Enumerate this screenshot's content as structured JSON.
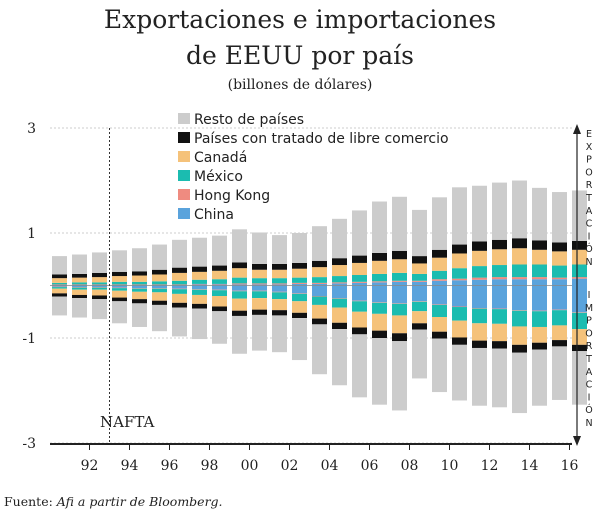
{
  "header": {
    "title_line1": "Exportaciones e importaciones",
    "title_line2": "de EEUU por país",
    "subtitle": "(billones de dólares)"
  },
  "footer": {
    "source_prefix": "Fuente: ",
    "source_text": "Afi a partir de Bloomberg."
  },
  "chart_data": {
    "type": "bar",
    "subtype": "stacked-diverging",
    "x": [
      1991,
      1992,
      1993,
      1994,
      1995,
      1996,
      1997,
      1998,
      1999,
      2000,
      2001,
      2002,
      2003,
      2004,
      2005,
      2006,
      2007,
      2008,
      2009,
      2010,
      2011,
      2012,
      2013,
      2014,
      2015,
      2016,
      2017
    ],
    "xtick_labels": [
      "92",
      "94",
      "96",
      "98",
      "00",
      "02",
      "04",
      "06",
      "08",
      "10",
      "12",
      "14",
      "16"
    ],
    "ytick_labels": [
      "3",
      "1",
      "-1",
      "-3"
    ],
    "ylim": [
      -3,
      3
    ],
    "grid": true,
    "legend_position": "top-right",
    "axis_side_labels": {
      "top": "EXPORTACIÓN",
      "bottom": "IMPORTACIÓN"
    },
    "annotation": {
      "text": "NAFTA",
      "x": 1993.5
    },
    "series": [
      {
        "name": "Resto de países",
        "color": "#cccccc",
        "exports": [
          0.35,
          0.37,
          0.39,
          0.41,
          0.44,
          0.48,
          0.53,
          0.55,
          0.57,
          0.63,
          0.6,
          0.55,
          0.57,
          0.66,
          0.75,
          0.86,
          0.98,
          1.03,
          0.88,
          1.0,
          1.09,
          1.06,
          1.09,
          1.1,
          1.0,
          0.96,
          0.96
        ],
        "imports": [
          -0.36,
          -0.37,
          -0.38,
          -0.42,
          -0.45,
          -0.5,
          -0.55,
          -0.58,
          -0.62,
          -0.72,
          -0.68,
          -0.7,
          -0.8,
          -0.95,
          -1.07,
          -1.2,
          -1.27,
          -1.32,
          -0.93,
          -1.02,
          -1.06,
          -1.1,
          -1.12,
          -1.15,
          -1.07,
          -1.02,
          -1.02
        ]
      },
      {
        "name": "Países con tratado de libre comercio",
        "color": "#111111",
        "exports": [
          0.07,
          0.07,
          0.08,
          0.08,
          0.08,
          0.09,
          0.1,
          0.1,
          0.1,
          0.11,
          0.11,
          0.11,
          0.11,
          0.12,
          0.13,
          0.14,
          0.15,
          0.16,
          0.14,
          0.15,
          0.17,
          0.18,
          0.18,
          0.19,
          0.18,
          0.17,
          0.17
        ],
        "imports": [
          -0.06,
          -0.06,
          -0.07,
          -0.07,
          -0.08,
          -0.08,
          -0.09,
          -0.09,
          -0.09,
          -0.1,
          -0.1,
          -0.1,
          -0.1,
          -0.11,
          -0.12,
          -0.13,
          -0.14,
          -0.15,
          -0.12,
          -0.13,
          -0.14,
          -0.14,
          -0.14,
          -0.15,
          -0.13,
          -0.12,
          -0.12
        ]
      },
      {
        "name": "Canadá",
        "color": "#f5c27a",
        "exports": [
          0.09,
          0.09,
          0.1,
          0.11,
          0.12,
          0.13,
          0.15,
          0.15,
          0.16,
          0.18,
          0.16,
          0.16,
          0.17,
          0.19,
          0.21,
          0.23,
          0.25,
          0.26,
          0.2,
          0.25,
          0.28,
          0.29,
          0.3,
          0.31,
          0.28,
          0.27,
          0.28
        ],
        "imports": [
          -0.09,
          -0.1,
          -0.11,
          -0.13,
          -0.14,
          -0.16,
          -0.17,
          -0.17,
          -0.2,
          -0.23,
          -0.22,
          -0.21,
          -0.22,
          -0.26,
          -0.29,
          -0.3,
          -0.32,
          -0.34,
          -0.23,
          -0.28,
          -0.32,
          -0.33,
          -0.33,
          -0.35,
          -0.3,
          -0.28,
          -0.3
        ]
      },
      {
        "name": "México",
        "color": "#1bbcb0",
        "exports": [
          0.03,
          0.04,
          0.04,
          0.05,
          0.05,
          0.06,
          0.07,
          0.08,
          0.09,
          0.11,
          0.1,
          0.1,
          0.1,
          0.11,
          0.12,
          0.13,
          0.14,
          0.15,
          0.13,
          0.16,
          0.2,
          0.22,
          0.23,
          0.24,
          0.24,
          0.23,
          0.24
        ],
        "imports": [
          -0.03,
          -0.04,
          -0.04,
          -0.05,
          -0.06,
          -0.07,
          -0.09,
          -0.1,
          -0.11,
          -0.14,
          -0.13,
          -0.13,
          -0.14,
          -0.16,
          -0.17,
          -0.2,
          -0.21,
          -0.22,
          -0.18,
          -0.23,
          -0.26,
          -0.28,
          -0.28,
          -0.3,
          -0.3,
          -0.29,
          -0.31
        ]
      },
      {
        "name": "Hong Kong",
        "color": "#ef8b80",
        "exports": [
          0.01,
          0.01,
          0.01,
          0.01,
          0.01,
          0.01,
          0.01,
          0.01,
          0.01,
          0.02,
          0.02,
          0.02,
          0.02,
          0.02,
          0.02,
          0.02,
          0.02,
          0.02,
          0.02,
          0.03,
          0.03,
          0.04,
          0.04,
          0.04,
          0.04,
          0.03,
          0.03
        ],
        "imports": [
          -0.01,
          -0.01,
          -0.01,
          -0.01,
          -0.01,
          -0.01,
          -0.01,
          -0.01,
          -0.01,
          -0.01,
          -0.01,
          -0.01,
          -0.01,
          -0.01,
          -0.01,
          -0.01,
          -0.01,
          -0.01,
          -0.01,
          -0.01,
          -0.01,
          -0.01,
          -0.01,
          -0.01,
          -0.01,
          -0.01,
          -0.01
        ]
      },
      {
        "name": "China",
        "color": "#5aa3dc",
        "exports": [
          0.01,
          0.01,
          0.01,
          0.01,
          0.01,
          0.01,
          0.01,
          0.02,
          0.02,
          0.02,
          0.02,
          0.02,
          0.03,
          0.03,
          0.04,
          0.05,
          0.06,
          0.07,
          0.07,
          0.09,
          0.1,
          0.11,
          0.12,
          0.12,
          0.12,
          0.12,
          0.13
        ],
        "imports": [
          -0.02,
          -0.03,
          -0.03,
          -0.04,
          -0.05,
          -0.05,
          -0.06,
          -0.07,
          -0.08,
          -0.1,
          -0.1,
          -0.12,
          -0.15,
          -0.2,
          -0.24,
          -0.29,
          -0.32,
          -0.34,
          -0.3,
          -0.36,
          -0.4,
          -0.43,
          -0.44,
          -0.47,
          -0.48,
          -0.46,
          -0.51
        ]
      }
    ]
  }
}
